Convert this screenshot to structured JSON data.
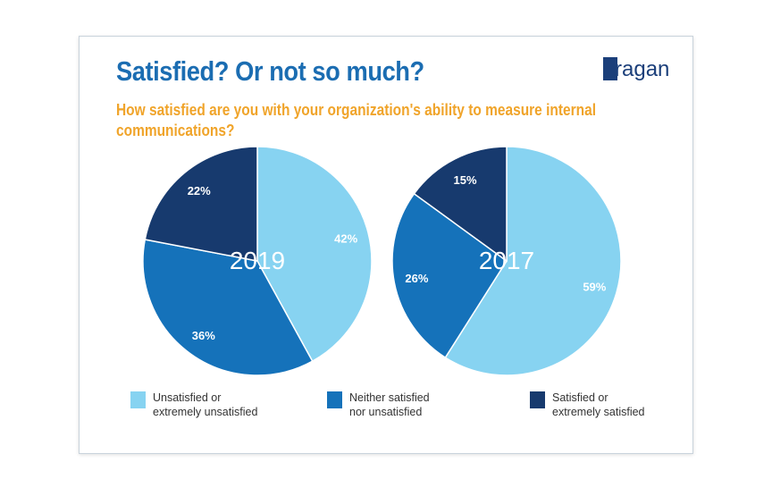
{
  "title": "Satisfied? Or not so much?",
  "subtitle": "How satisfied are you with your organization's ability to measure internal communications?",
  "logo": "ragan",
  "chart_data": [
    {
      "type": "pie",
      "title": "2019",
      "categories": [
        "Unsatisfied or extremely unsatisfied",
        "Neither satisfied nor unsatisfied",
        "Satisfied or extremely satisfied"
      ],
      "values": [
        42,
        36,
        22
      ],
      "labels": [
        "42%",
        "36%",
        "22%"
      ]
    },
    {
      "type": "pie",
      "title": "2017",
      "categories": [
        "Unsatisfied or extremely unsatisfied",
        "Neither satisfied nor unsatisfied",
        "Satisfied or extremely satisfied"
      ],
      "values": [
        59,
        26,
        15
      ],
      "labels": [
        "59%",
        "26%",
        "15%"
      ]
    }
  ],
  "legend": [
    {
      "line1": "Unsatisfied or",
      "line2": "extremely unsatisfied",
      "color": "#87d3f1"
    },
    {
      "line1": "Neither satisfied",
      "line2": "nor unsatisfied",
      "color": "#1572ba"
    },
    {
      "line1": "Satisfied or",
      "line2": "extremely satisfied",
      "color": "#173a6e"
    }
  ]
}
